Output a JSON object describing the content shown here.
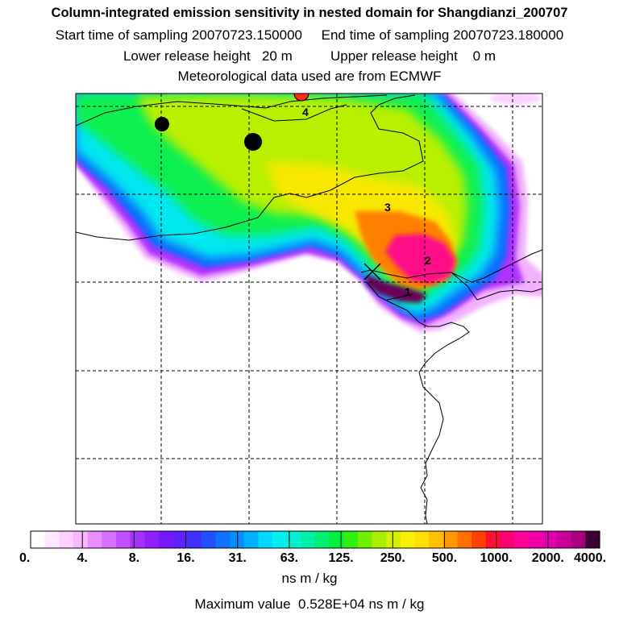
{
  "header": {
    "title": "Column-integrated emission sensitivity in nested domain for Shangdianzi_200707",
    "sampling_line": "Start time of sampling 20070723.150000     End time of sampling 20070723.180000",
    "release_line": "Lower release height   20 m          Upper release height    0 m",
    "met_line": "Meteorological data used are from ECMWF"
  },
  "map": {
    "region_labels": [
      "4",
      "3",
      "2",
      "1"
    ],
    "colors": {
      "frame": "#000000",
      "receptor_marker": "#ff2a1a",
      "site_marker": "#000000"
    }
  },
  "colorbar": {
    "colors": [
      "#ffffff",
      "#ffe8ff",
      "#ffd0ff",
      "#f8b8ff",
      "#e890ff",
      "#d870ff",
      "#c050ff",
      "#a830ff",
      "#9020ff",
      "#7818ff",
      "#6020ff",
      "#4030ff",
      "#2050ff",
      "#1070ff",
      "#0090ff",
      "#00b0ff",
      "#00d8ff",
      "#00f0f0",
      "#00f0d0",
      "#00f0a8",
      "#00f070",
      "#00f040",
      "#30f010",
      "#70f000",
      "#a8f000",
      "#d8f000",
      "#f8f000",
      "#ffe000",
      "#ffc000",
      "#ff9800",
      "#ff7000",
      "#ff4000",
      "#ff1030",
      "#ff0070",
      "#ff0098",
      "#f000a8",
      "#e000b0",
      "#c80098",
      "#a8007c",
      "#3c0030"
    ],
    "tick_labels": [
      "0.",
      "4.",
      "8.",
      "16.",
      "31.",
      "63.",
      "125.",
      "250.",
      "500.",
      "1000.",
      "2000.",
      "4000."
    ],
    "unit_label": "ns m / kg",
    "max_label": "Maximum value  0.528E+04 ns m / kg"
  }
}
